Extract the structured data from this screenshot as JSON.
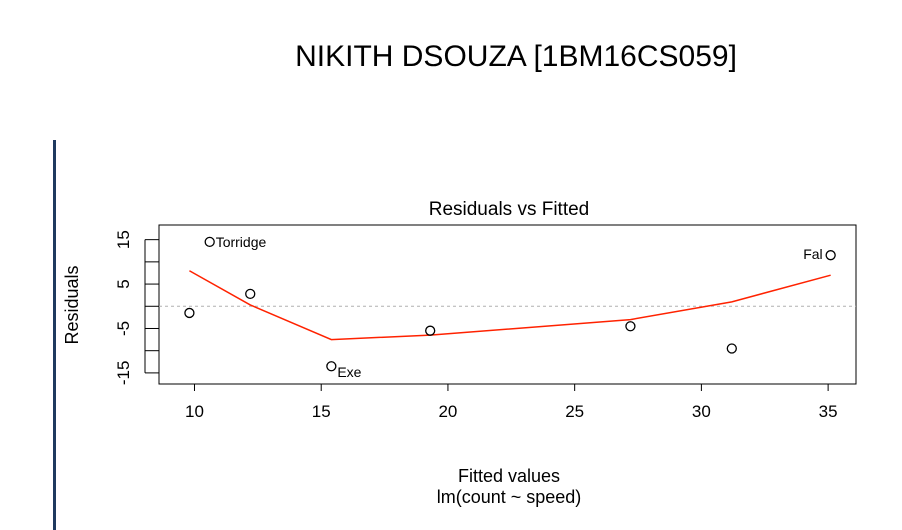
{
  "slide": {
    "title": "NIKITH DSOUZA [1BM16CS059]",
    "accent_color": "#1f3a5f"
  },
  "chart_data": {
    "type": "scatter",
    "title": "Residuals vs Fitted",
    "xlabel": "Fitted values",
    "subtitle": "lm(count ~ speed)",
    "ylabel": "Residuals",
    "xlim": [
      8.6,
      36.1
    ],
    "ylim": [
      -17.5,
      18.3
    ],
    "x_ticks": [
      10,
      15,
      20,
      25,
      30,
      35
    ],
    "y_ticks": [
      -15,
      -5,
      5,
      15
    ],
    "y_minor_ticks": [
      -10,
      0,
      10
    ],
    "zero_line": {
      "y": 0,
      "style": "dotted",
      "color": "#b0b0b0"
    },
    "points": [
      {
        "x": 9.8,
        "y": -1.5,
        "label": ""
      },
      {
        "x": 10.6,
        "y": 14.5,
        "label": "Torridge"
      },
      {
        "x": 12.2,
        "y": 2.8,
        "label": ""
      },
      {
        "x": 15.4,
        "y": -13.5,
        "label": "Exe"
      },
      {
        "x": 19.3,
        "y": -5.5,
        "label": ""
      },
      {
        "x": 27.2,
        "y": -4.5,
        "label": ""
      },
      {
        "x": 31.2,
        "y": -9.5,
        "label": ""
      },
      {
        "x": 35.1,
        "y": 11.5,
        "label": "Fal"
      }
    ],
    "smoother": {
      "color": "#ff2200",
      "x": [
        9.8,
        12.2,
        15.4,
        19.3,
        27.2,
        31.2,
        35.1
      ],
      "y": [
        8.0,
        0.3,
        -7.5,
        -6.5,
        -3.0,
        1.0,
        7.0
      ]
    },
    "point_color": "#000000"
  }
}
